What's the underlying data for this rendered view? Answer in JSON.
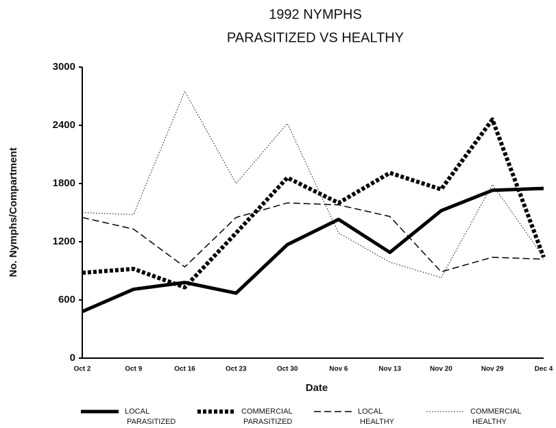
{
  "chart_data": {
    "type": "line",
    "title": "1992 NYMPHS",
    "subtitle": "PARASITIZED VS HEALTHY",
    "x_label": "Date",
    "y_label": "No. Nymphs/Compartment",
    "categories": [
      "Oct 2",
      "Oct 9",
      "Oct 16",
      "Oct 23",
      "Oct 30",
      "Nov 6",
      "Nov 13",
      "Nov 20",
      "Nov 29",
      "Dec 4"
    ],
    "ylim": [
      0,
      3000
    ],
    "yticks": [
      0,
      600,
      1200,
      1800,
      2400,
      3000
    ],
    "series": [
      {
        "name": "LOCAL PARASITIZED",
        "color": "#000000",
        "style": "solid",
        "width": 5,
        "values": [
          480,
          710,
          780,
          670,
          1170,
          1430,
          1090,
          1520,
          1730,
          1750
        ]
      },
      {
        "name": "COMMERCIAL PARASITIZED",
        "color": "#000000",
        "style": "heavy-dotted",
        "width": 6,
        "values": [
          880,
          920,
          730,
          1290,
          1860,
          1600,
          1910,
          1740,
          2460,
          1040
        ]
      },
      {
        "name": "LOCAL HEALTHY",
        "color": "#000000",
        "style": "dashed",
        "width": 1.5,
        "values": [
          1450,
          1330,
          940,
          1450,
          1600,
          1580,
          1460,
          890,
          1040,
          1020
        ]
      },
      {
        "name": "COMMERCIAL HEALTHY",
        "color": "#000000",
        "style": "dotted",
        "width": 1,
        "values": [
          1500,
          1480,
          2750,
          1800,
          2420,
          1290,
          990,
          830,
          1790,
          1040
        ]
      }
    ]
  }
}
